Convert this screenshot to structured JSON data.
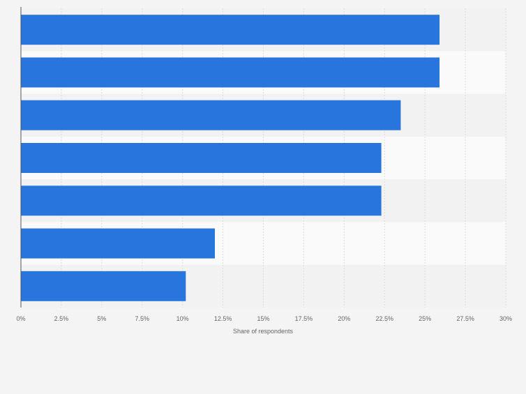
{
  "chart_data": {
    "type": "bar",
    "orientation": "horizontal",
    "title": "",
    "xlabel": "Share of respondents",
    "ylabel": "",
    "categories": [
      "",
      "",
      "",
      "",
      "",
      "",
      ""
    ],
    "values": [
      25.9,
      25.9,
      23.5,
      22.3,
      22.3,
      12.0,
      10.2
    ],
    "xlim": [
      0,
      30
    ],
    "ticks": [
      0,
      2.5,
      5,
      7.5,
      10,
      12.5,
      15,
      17.5,
      20,
      22.5,
      25,
      27.5,
      30
    ],
    "tick_labels": [
      "0%",
      "2.5%",
      "5%",
      "7.5%",
      "10%",
      "12.5%",
      "15%",
      "17.5%",
      "20%",
      "22.5%",
      "25%",
      "27.5%",
      "30%"
    ],
    "grid": true,
    "legend": "none",
    "colors": {
      "bar": "#2876dd",
      "band_dark": "#f2f2f2",
      "band_light": "#fafafa",
      "grid": "#dcdcdc",
      "axis": "#555555",
      "tick_text": "#666666"
    }
  }
}
